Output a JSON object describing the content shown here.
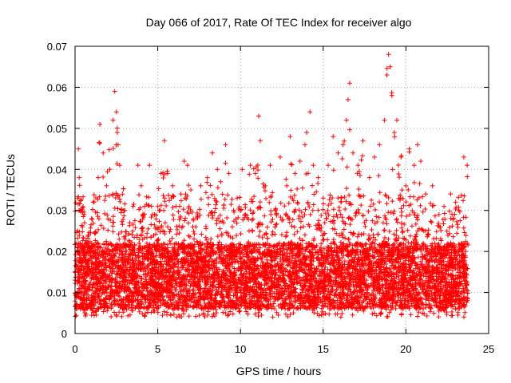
{
  "chart_data": {
    "type": "scatter",
    "title": "Day 066 of 2017, Rate Of TEC Index for receiver algo",
    "xlabel": "GPS time / hours",
    "ylabel": "ROTI / TECUs",
    "xlim": [
      0,
      25
    ],
    "ylim": [
      0,
      0.07
    ],
    "xticks": [
      0,
      5,
      10,
      15,
      20,
      25
    ],
    "yticks": [
      0,
      0.01,
      0.02,
      0.03,
      0.04,
      0.05,
      0.06,
      0.07
    ],
    "xtick_labels": [
      "0",
      "5",
      "10",
      "15",
      "20",
      "25"
    ],
    "ytick_labels": [
      "0",
      "0.01",
      "0.02",
      "0.03",
      "0.04",
      "0.05",
      "0.06",
      "0.07"
    ],
    "grid": true,
    "legend": "none",
    "marker": "plus",
    "color": "#ff0000",
    "x_range_of_data": [
      0,
      23.75
    ],
    "series": [
      {
        "points": [
          [
            0.0,
            0.013
          ],
          [
            0.1,
            0.022
          ],
          [
            0.15,
            0.033
          ],
          [
            0.2,
            0.045
          ],
          [
            0.25,
            0.038
          ],
          [
            0.3,
            0.03
          ],
          [
            0.45,
            0.026
          ],
          [
            0.6,
            0.02
          ],
          [
            0.8,
            0.024
          ],
          [
            1.0,
            0.028
          ],
          [
            1.1,
            0.032
          ],
          [
            1.4,
            0.038
          ],
          [
            1.5,
            0.051
          ],
          [
            1.7,
            0.044
          ],
          [
            1.9,
            0.036
          ],
          [
            2.1,
            0.04
          ],
          [
            2.3,
            0.052
          ],
          [
            2.4,
            0.059
          ],
          [
            2.5,
            0.054
          ],
          [
            2.55,
            0.049
          ],
          [
            2.6,
            0.046
          ],
          [
            2.7,
            0.041
          ],
          [
            3.0,
            0.03
          ],
          [
            3.3,
            0.027
          ],
          [
            3.5,
            0.031
          ],
          [
            3.8,
            0.041
          ],
          [
            4.0,
            0.036
          ],
          [
            4.2,
            0.031
          ],
          [
            4.5,
            0.041
          ],
          [
            4.8,
            0.029
          ],
          [
            5.0,
            0.031
          ],
          [
            5.2,
            0.039
          ],
          [
            5.4,
            0.047
          ],
          [
            5.6,
            0.026
          ],
          [
            5.9,
            0.036
          ],
          [
            6.1,
            0.031
          ],
          [
            6.4,
            0.034
          ],
          [
            6.6,
            0.042
          ],
          [
            6.8,
            0.041
          ],
          [
            7.0,
            0.035
          ],
          [
            7.3,
            0.026
          ],
          [
            7.6,
            0.036
          ],
          [
            8.0,
            0.038
          ],
          [
            8.3,
            0.044
          ],
          [
            8.6,
            0.04
          ],
          [
            8.8,
            0.037
          ],
          [
            9.1,
            0.046
          ],
          [
            9.3,
            0.039
          ],
          [
            9.5,
            0.026
          ],
          [
            9.8,
            0.033
          ],
          [
            10.1,
            0.04
          ],
          [
            10.3,
            0.029
          ],
          [
            10.6,
            0.041
          ],
          [
            10.9,
            0.039
          ],
          [
            11.1,
            0.053
          ],
          [
            11.2,
            0.047
          ],
          [
            11.5,
            0.036
          ],
          [
            11.8,
            0.041
          ],
          [
            12.1,
            0.03
          ],
          [
            12.4,
            0.043
          ],
          [
            12.8,
            0.036
          ],
          [
            13.0,
            0.048
          ],
          [
            13.3,
            0.039
          ],
          [
            13.6,
            0.042
          ],
          [
            13.9,
            0.046
          ],
          [
            14.0,
            0.049
          ],
          [
            14.2,
            0.054
          ],
          [
            14.4,
            0.041
          ],
          [
            14.7,
            0.038
          ],
          [
            15.0,
            0.033
          ],
          [
            15.3,
            0.041
          ],
          [
            15.6,
            0.048
          ],
          [
            15.9,
            0.044
          ],
          [
            16.2,
            0.046
          ],
          [
            16.4,
            0.052
          ],
          [
            16.5,
            0.057
          ],
          [
            16.6,
            0.061
          ],
          [
            16.8,
            0.044
          ],
          [
            17.1,
            0.041
          ],
          [
            17.4,
            0.047
          ],
          [
            17.8,
            0.038
          ],
          [
            18.1,
            0.043
          ],
          [
            18.4,
            0.046
          ],
          [
            18.7,
            0.052
          ],
          [
            18.85,
            0.063
          ],
          [
            18.95,
            0.068
          ],
          [
            19.05,
            0.065
          ],
          [
            19.15,
            0.058
          ],
          [
            19.3,
            0.049
          ],
          [
            19.45,
            0.052
          ],
          [
            19.7,
            0.043
          ],
          [
            20.0,
            0.036
          ],
          [
            20.2,
            0.045
          ],
          [
            20.5,
            0.041
          ],
          [
            20.7,
            0.046
          ],
          [
            20.9,
            0.042
          ],
          [
            21.2,
            0.034
          ],
          [
            21.6,
            0.036
          ],
          [
            22.0,
            0.029
          ],
          [
            22.3,
            0.031
          ],
          [
            22.7,
            0.034
          ],
          [
            23.0,
            0.032
          ],
          [
            23.5,
            0.043
          ],
          [
            23.7,
            0.041
          ]
        ]
      }
    ]
  }
}
